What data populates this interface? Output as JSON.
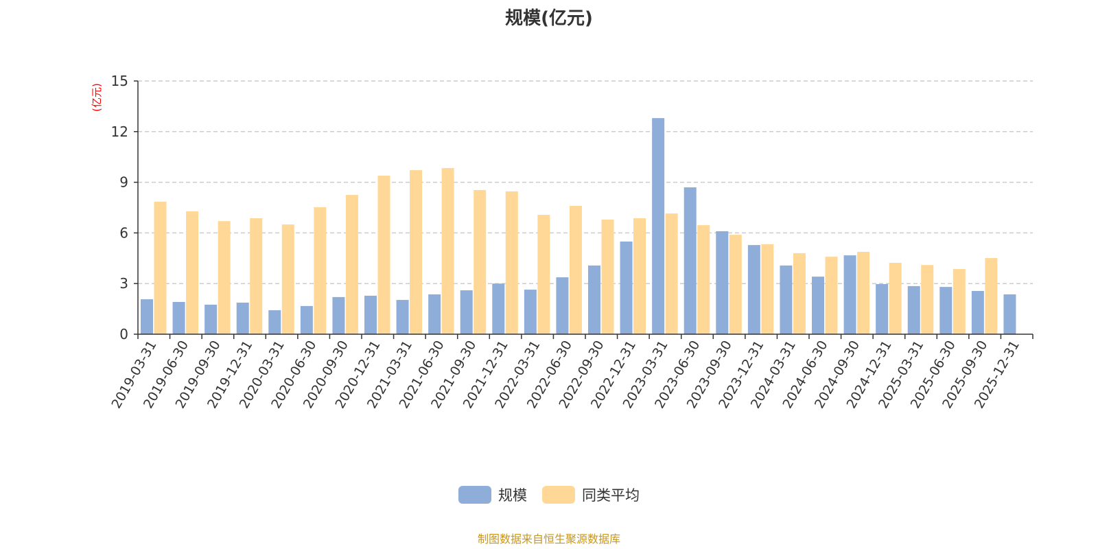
{
  "title": "规模(亿元)",
  "footer": "制图数据来自恒生聚源数据库",
  "colors": {
    "scale": "#8eadd9",
    "avg": "#ffd897",
    "ylabel": "#ff0000"
  },
  "chart_data": {
    "type": "bar",
    "title": "规模(亿元)",
    "ylabel": "(亿元)",
    "xlabel": "",
    "ylim": [
      0,
      15
    ],
    "yticks": [
      0,
      3,
      6,
      9,
      12,
      15
    ],
    "grid": true,
    "legend_position": "bottom",
    "categories": [
      "2019-03-31",
      "2019-06-30",
      "2019-09-30",
      "2019-12-31",
      "2020-03-31",
      "2020-06-30",
      "2020-09-30",
      "2020-12-31",
      "2021-03-31",
      "2021-06-30",
      "2021-09-30",
      "2021-12-31",
      "2022-03-31",
      "2022-06-30",
      "2022-09-30",
      "2022-12-31",
      "2023-03-31",
      "2023-06-30",
      "2023-09-30",
      "2023-12-31",
      "2024-03-31",
      "2024-06-30",
      "2024-09-30",
      "2024-12-31",
      "2025-03-31",
      "2025-06-30",
      "2025-09-30",
      "2025-12-31"
    ],
    "series": [
      {
        "name": "规模",
        "values": [
          2.07,
          1.91,
          1.75,
          1.87,
          1.42,
          1.67,
          2.2,
          2.28,
          2.03,
          2.36,
          2.6,
          3.0,
          2.64,
          3.37,
          4.07,
          5.49,
          12.8,
          8.7,
          6.1,
          5.28,
          4.07,
          3.41,
          4.67,
          2.97,
          2.85,
          2.8,
          2.56,
          2.36
        ]
      },
      {
        "name": "同类平均",
        "values": [
          7.85,
          7.28,
          6.7,
          6.87,
          6.5,
          7.52,
          8.25,
          9.39,
          9.72,
          9.84,
          8.54,
          8.46,
          7.07,
          7.6,
          6.79,
          6.87,
          7.15,
          6.46,
          5.89,
          5.33,
          4.8,
          4.59,
          4.88,
          4.23,
          4.1,
          3.86,
          4.51,
          null
        ]
      }
    ]
  }
}
